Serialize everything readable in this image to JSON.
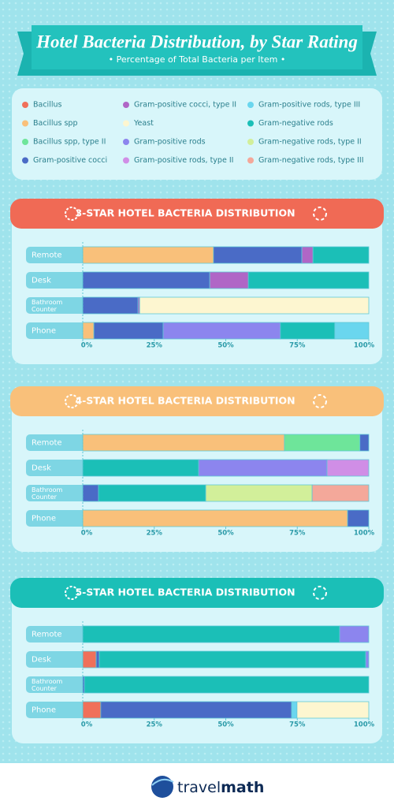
{
  "header": {
    "title": "Hotel Bacteria Distribution, by Star Rating",
    "subtitle": "• Percentage of Total Bacteria per Item •"
  },
  "legend": {
    "items": [
      {
        "name": "Bacillus",
        "color": "#f0705a"
      },
      {
        "name": "Bacillus spp",
        "color": "#f9c07a"
      },
      {
        "name": "Bacillus spp, type II",
        "color": "#6ee59a"
      },
      {
        "name": "Gram-positive cocci",
        "color": "#4a6bc6"
      },
      {
        "name": "Gram-positive cocci, type II",
        "color": "#b066c6"
      },
      {
        "name": "Yeast",
        "color": "#fdf6d0"
      },
      {
        "name": "Gram-positive rods",
        "color": "#8c85ee"
      },
      {
        "name": "Gram-positive rods, type II",
        "color": "#d08ee6"
      },
      {
        "name": "Gram-positive rods, type III",
        "color": "#6ad6ee"
      },
      {
        "name": "Gram-negative rods",
        "color": "#1bbfb7"
      },
      {
        "name": "Gram-negative rods, type II",
        "color": "#d2ef9a"
      },
      {
        "name": "Gram-negative rods, type III",
        "color": "#f4a89a"
      }
    ]
  },
  "chart_data": [
    {
      "type": "bar",
      "orientation": "horizontal",
      "stacked": true,
      "header_color": "#f06a55",
      "title": "3-STAR HOTEL BACTERIA DISTRIBUTION",
      "categories": [
        "Remote",
        "Desk",
        "Bathroom Counter",
        "Phone"
      ],
      "xlim": [
        0,
        100
      ],
      "xticks": [
        {
          "value": 0,
          "label": "0%"
        },
        {
          "value": 25,
          "label": "25%"
        },
        {
          "value": 50,
          "label": "50%"
        },
        {
          "value": 75,
          "label": "75%"
        },
        {
          "value": 100,
          "label": "100%"
        }
      ],
      "series": [
        {
          "name": "Bacillus spp",
          "values": [
            45.7,
            0,
            0,
            3.9
          ]
        },
        {
          "name": "Gram-positive cocci",
          "values": [
            30.9,
            44.4,
            19.3,
            24.2
          ]
        },
        {
          "name": "Gram-positive cocci, type II",
          "values": [
            3.9,
            13.5,
            0.6,
            0
          ]
        },
        {
          "name": "Yeast",
          "values": [
            0,
            0,
            80.1,
            0
          ]
        },
        {
          "name": "Gram-positive rods",
          "values": [
            0,
            0,
            0,
            41.0
          ]
        },
        {
          "name": "Gram-negative rods",
          "values": [
            19.5,
            42.1,
            0,
            19.0
          ]
        },
        {
          "name": "Gram-positive rods, type III",
          "values": [
            0,
            0,
            0,
            11.9
          ]
        }
      ]
    },
    {
      "type": "bar",
      "orientation": "horizontal",
      "stacked": true,
      "header_color": "#f9c07a",
      "title": "4-STAR HOTEL BACTERIA DISTRIBUTION",
      "categories": [
        "Remote",
        "Desk",
        "Bathroom Counter",
        "Phone"
      ],
      "xlim": [
        0,
        100
      ],
      "xticks": [
        {
          "value": 0,
          "label": "0%"
        },
        {
          "value": 25,
          "label": "25%"
        },
        {
          "value": 50,
          "label": "50%"
        },
        {
          "value": 75,
          "label": "75%"
        },
        {
          "value": 100,
          "label": "100%"
        }
      ],
      "series": [
        {
          "name": "Bacillus spp",
          "values": [
            70.5,
            0,
            0,
            92.6
          ]
        },
        {
          "name": "Bacillus spp, type II",
          "values": [
            26.4,
            0,
            0,
            0
          ]
        },
        {
          "name": "Gram-positive cocci",
          "values": [
            3.1,
            0,
            5.5,
            7.4
          ]
        },
        {
          "name": "Gram-negative rods",
          "values": [
            0,
            40.5,
            37.5,
            0
          ]
        },
        {
          "name": "Gram-positive rods",
          "values": [
            0,
            44.9,
            0,
            0
          ]
        },
        {
          "name": "Gram-positive rods, type II",
          "values": [
            0,
            14.6,
            0,
            0
          ]
        },
        {
          "name": "Gram-negative rods, type II",
          "values": [
            0,
            0,
            37.2,
            0
          ]
        },
        {
          "name": "Gram-negative rods, type III",
          "values": [
            0,
            0,
            19.8,
            0
          ]
        }
      ]
    },
    {
      "type": "bar",
      "orientation": "horizontal",
      "stacked": true,
      "header_color": "#1bbfb7",
      "title": "5-STAR HOTEL BACTERIA DISTRIBUTION",
      "categories": [
        "Remote",
        "Desk",
        "Bathroom Counter",
        "Phone"
      ],
      "xlim": [
        0,
        100
      ],
      "xticks": [
        {
          "value": 0,
          "label": "0%"
        },
        {
          "value": 25,
          "label": "25%"
        },
        {
          "value": 50,
          "label": "50%"
        },
        {
          "value": 75,
          "label": "75%"
        },
        {
          "value": 100,
          "label": "100%"
        }
      ],
      "series": [
        {
          "name": "Bacillus",
          "values": [
            0,
            4.7,
            0,
            6.3
          ]
        },
        {
          "name": "Gram-positive cocci",
          "values": [
            0,
            1.1,
            0.6,
            66.7
          ]
        },
        {
          "name": "Gram-negative rods",
          "values": [
            89.8,
            93.1,
            99.4,
            0
          ]
        },
        {
          "name": "Gram-positive rods",
          "values": [
            10.2,
            1.1,
            0,
            0
          ]
        },
        {
          "name": "Gram-positive rods, type III",
          "values": [
            0,
            0,
            0,
            1.9
          ]
        },
        {
          "name": "Yeast",
          "values": [
            0,
            0,
            0,
            25.1
          ]
        }
      ]
    }
  ],
  "footer": {
    "brand_part1": "travel",
    "brand_part2": "math"
  }
}
